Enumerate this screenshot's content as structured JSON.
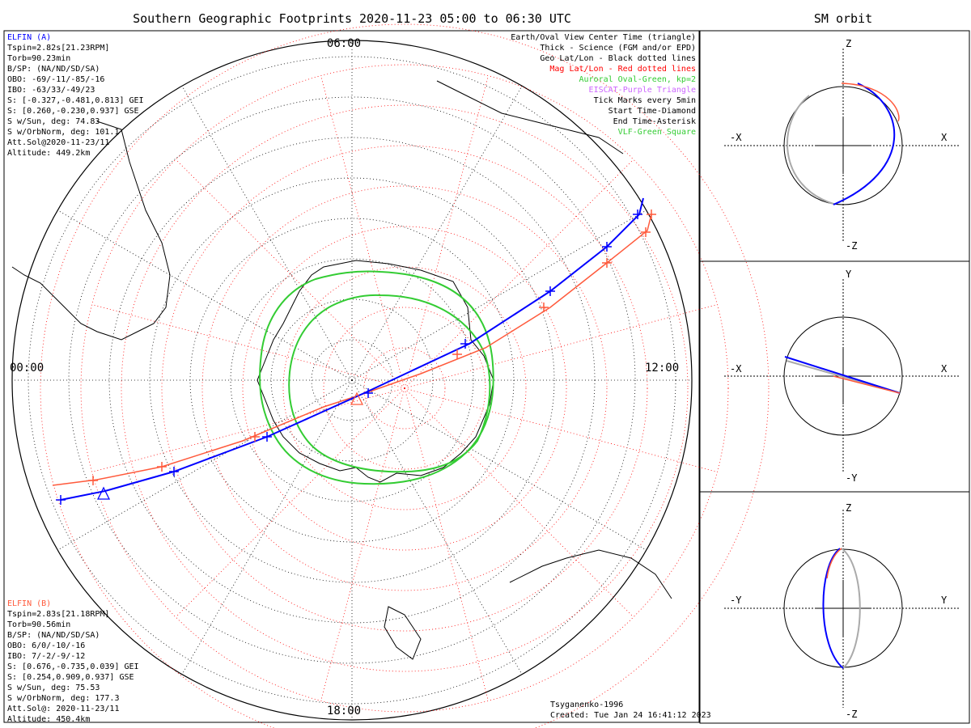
{
  "header": {
    "main_title": "Southern Geographic Footprints 2020-11-23 05:00 to 06:30 UTC",
    "side_title": "SM orbit"
  },
  "map": {
    "clock_labels": {
      "top": "06:00",
      "left": "00:00",
      "right": "12:00",
      "bottom": "18:00"
    }
  },
  "elfin_a": {
    "color": "#0000ff",
    "lines": [
      "ELFIN (A)",
      "Tspin=2.82s[21.23RPM]",
      "Torb=90.23min",
      "B/SP: (NA/ND/SD/SA)",
      "OBO: -69/-11/-85/-16",
      "IBO: -63/33/-49/23",
      "S: [-0.327,-0.481,0.813] GEI",
      "S: [0.260,-0.230,0.937] GSE",
      "S w/Sun, deg: 74.83",
      "S w/OrbNorm, deg: 101.1",
      "Att.Sol@2020-11-23/11",
      "Altitude: 449.2km"
    ]
  },
  "elfin_b": {
    "color": "#ff5a3c",
    "lines": [
      "ELFIN (B)",
      "Tspin=2.83s[21.18RPM]",
      "Torb=90.56min",
      "B/SP: (NA/ND/SD/SA)",
      "OBO: 6/0/-10/-16",
      "IBO: 7/-2/-9/-12",
      "S: [0.676,-0.735,0.039] GEI",
      "S: [0.254,0.909,0.937] GSE",
      "S w/Sun, deg: 75.53",
      "S w/OrbNorm, deg: 177.3",
      "Att.Sol@: 2020-11-23/11",
      "Altitude: 450.4km"
    ]
  },
  "legend": [
    {
      "text": "Earth/Oval View Center Time (triangle)",
      "color": "#000000"
    },
    {
      "text": "Thick - Science (FGM and/or EPD)",
      "color": "#000000"
    },
    {
      "text": "Geo Lat/Lon - Black dotted lines",
      "color": "#000000"
    },
    {
      "text": "Mag Lat/Lon - Red dotted lines",
      "color": "#ff0000"
    },
    {
      "text": "Auroral Oval-Green, kp=2",
      "color": "#33cc33"
    },
    {
      "text": "EISCAT-Purple Triangle",
      "color": "#cc66ff"
    },
    {
      "text": "Tick Marks every 5min",
      "color": "#000000"
    },
    {
      "text": "Start Time-Diamond",
      "color": "#000000"
    },
    {
      "text": "End Time-Asterisk",
      "color": "#000000"
    },
    {
      "text": "VLF-Green Square",
      "color": "#33cc33"
    }
  ],
  "footer": {
    "model": "Tsyganenko-1996",
    "created": "Created: Tue Jan 24 16:41:12 2023"
  },
  "sm_panels": [
    {
      "top": "Z",
      "bottom": "-Z",
      "left": "-X",
      "right": "X"
    },
    {
      "top": "Y",
      "bottom": "-Y",
      "left": "-X",
      "right": "X"
    },
    {
      "top": "Z",
      "bottom": "-Z",
      "left": "-Y",
      "right": "Y"
    }
  ],
  "chart_data": {
    "type": "scatter",
    "title": "Southern Geographic Footprints 2020-11-23 05:00 to 06:30 UTC",
    "projection": "polar stereographic, south pole",
    "grid": true,
    "series": [
      {
        "name": "ELFIN (A)",
        "color": "#0000ff"
      },
      {
        "name": "ELFIN (B)",
        "color": "#ff5a3c"
      }
    ]
  }
}
